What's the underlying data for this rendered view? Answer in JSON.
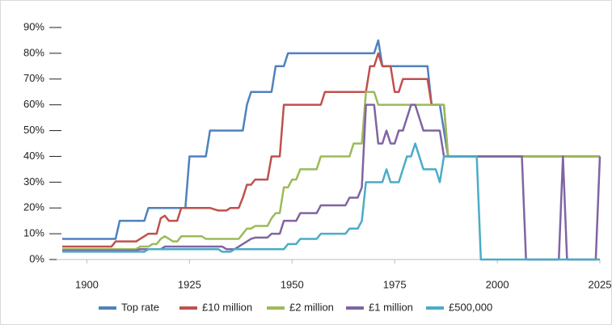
{
  "chart_data": {
    "type": "line",
    "xlim": [
      1894,
      2025
    ],
    "xticks": [
      1900,
      1925,
      1950,
      1975,
      2000,
      2025
    ],
    "ylim": [
      0,
      90
    ],
    "yticks": [
      {
        "value": 0,
        "label": "0%"
      },
      {
        "value": 10,
        "label": "10%"
      },
      {
        "value": 20,
        "label": "20%"
      },
      {
        "value": 30,
        "label": "30%"
      },
      {
        "value": 40,
        "label": "40%"
      },
      {
        "value": 50,
        "label": "50%"
      },
      {
        "value": 60,
        "label": "60%"
      },
      {
        "value": 70,
        "label": "70%"
      },
      {
        "value": 80,
        "label": "80%"
      },
      {
        "value": 90,
        "label": "90%"
      }
    ],
    "legend": "bottom",
    "series": [
      {
        "name": "Top rate",
        "color": "#4f81bd",
        "x": [
          1894,
          1907,
          1908,
          1914,
          1915,
          1924,
          1925,
          1929,
          1930,
          1938,
          1939,
          1940,
          1945,
          1946,
          1948,
          1949,
          1969,
          1970,
          1971,
          1972,
          1983,
          1984,
          1986,
          1988,
          2025
        ],
        "values": [
          8,
          8,
          15,
          15,
          20,
          20,
          40,
          40,
          50,
          50,
          60,
          65,
          65,
          75,
          75,
          80,
          80,
          80,
          85,
          75,
          75,
          60,
          60,
          40,
          40
        ]
      },
      {
        "name": "£10 million",
        "color": "#c0504d",
        "x": [
          1894,
          1906,
          1907,
          1912,
          1913,
          1915,
          1917,
          1918,
          1919,
          1920,
          1922,
          1923,
          1930,
          1932,
          1934,
          1935,
          1937,
          1938,
          1939,
          1940,
          1941,
          1944,
          1945,
          1947,
          1948,
          1957,
          1958,
          1968,
          1969,
          1970,
          1971,
          1972,
          1974,
          1975,
          1976,
          1977,
          1983,
          1984,
          1987,
          1988,
          2025
        ],
        "values": [
          5,
          5,
          7,
          7,
          8,
          10,
          10,
          16,
          17,
          15,
          15,
          20,
          20,
          19,
          19,
          20,
          20,
          24,
          29,
          29,
          31,
          31,
          40,
          40,
          60,
          60,
          65,
          65,
          75,
          75,
          80,
          75,
          75,
          65,
          65,
          70,
          70,
          60,
          60,
          40,
          40
        ]
      },
      {
        "name": "£2 million",
        "color": "#9bbb59",
        "x": [
          1894,
          1912,
          1913,
          1915,
          1916,
          1917,
          1918,
          1919,
          1920,
          1921,
          1922,
          1923,
          1928,
          1929,
          1937,
          1938,
          1939,
          1940,
          1941,
          1944,
          1945,
          1946,
          1947,
          1948,
          1949,
          1950,
          1951,
          1952,
          1956,
          1957,
          1964,
          1965,
          1967,
          1968,
          1970,
          1971,
          1987,
          1988,
          2025
        ],
        "values": [
          4,
          4,
          5,
          5,
          6,
          6,
          8,
          9,
          8,
          7,
          7,
          9,
          9,
          8,
          8,
          10,
          12,
          12,
          13,
          13,
          16,
          18,
          18,
          28,
          28,
          31,
          31,
          35,
          35,
          40,
          40,
          45,
          45,
          65,
          65,
          60,
          60,
          40,
          40
        ]
      },
      {
        "name": "£1 million",
        "color": "#8064a2",
        "x": [
          1894,
          1912,
          1913,
          1918,
          1919,
          1933,
          1934,
          1936,
          1937,
          1938,
          1939,
          1940,
          1941,
          1944,
          1945,
          1947,
          1948,
          1951,
          1952,
          1956,
          1957,
          1963,
          1964,
          1966,
          1967,
          1968,
          1970,
          1971,
          1972,
          1973,
          1974,
          1975,
          1976,
          1977,
          1979,
          1980,
          1981,
          1982,
          1986,
          1987,
          2006,
          2007,
          2015,
          2016,
          2017,
          2024,
          2025
        ],
        "values": [
          3.5,
          3.5,
          4,
          4,
          5,
          5,
          4,
          4,
          5,
          6,
          7,
          8,
          8.5,
          8.5,
          10,
          10,
          15,
          15,
          18,
          18,
          21,
          21,
          24,
          24,
          28,
          60,
          60,
          45,
          45,
          50,
          45,
          45,
          50,
          50,
          60,
          60,
          55,
          50,
          50,
          40,
          40,
          0,
          0,
          40,
          0,
          0,
          40
        ]
      },
      {
        "name": "£500,000",
        "color": "#4bacc6",
        "x": [
          1894,
          1914,
          1915,
          1932,
          1933,
          1935,
          1936,
          1948,
          1949,
          1951,
          1952,
          1956,
          1957,
          1963,
          1964,
          1966,
          1967,
          1968,
          1972,
          1973,
          1974,
          1976,
          1977,
          1978,
          1979,
          1980,
          1981,
          1982,
          1985,
          1986,
          1987,
          1995,
          1996,
          2025
        ],
        "values": [
          3,
          3,
          4,
          4,
          3,
          3,
          4,
          4,
          6,
          6,
          8,
          8,
          10,
          10,
          12,
          12,
          15,
          30,
          30,
          35,
          30,
          30,
          35,
          40,
          40,
          45,
          40,
          35,
          35,
          30,
          40,
          40,
          0,
          0
        ]
      }
    ]
  }
}
